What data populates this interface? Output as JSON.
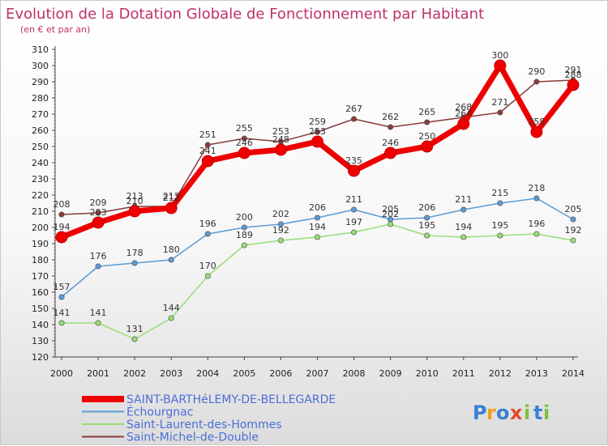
{
  "chart_data": {
    "type": "line",
    "title": "Evolution de la Dotation Globale de Fonctionnement par Habitant",
    "subtitle": "(en € et par an)",
    "xlabel": "",
    "ylabel": "",
    "ylim": [
      120,
      310
    ],
    "ytick_step": 10,
    "grid": false,
    "categories": [
      "2000",
      "2001",
      "2002",
      "2003",
      "2004",
      "2005",
      "2006",
      "2007",
      "2008",
      "2009",
      "2010",
      "2011",
      "2012",
      "2013",
      "2014"
    ],
    "series": [
      {
        "name": "SAINT-BARTHéLEMY-DE-BELLEGARDE",
        "color": "#ee0000",
        "values": [
          194,
          203,
          210,
          212,
          241,
          246,
          248,
          253,
          235,
          246,
          250,
          264,
          300,
          259,
          288
        ]
      },
      {
        "name": "Échourgnac",
        "color": "#5b9bd5",
        "values": [
          157,
          176,
          178,
          180,
          196,
          200,
          202,
          206,
          211,
          205,
          206,
          211,
          215,
          218,
          205
        ]
      },
      {
        "name": "Saint-Laurent-des-Hommes",
        "color": "#99dd77",
        "values": [
          141,
          141,
          131,
          144,
          170,
          189,
          192,
          194,
          197,
          202,
          195,
          194,
          195,
          196,
          192
        ]
      },
      {
        "name": "Saint-Michel-de-Double",
        "color": "#8b3a3a",
        "values": [
          208,
          209,
          213,
          213,
          251,
          255,
          253,
          259,
          267,
          262,
          265,
          268,
          271,
          290,
          291
        ]
      }
    ]
  },
  "branding": {
    "logo_letters": [
      "P",
      "r",
      "o",
      "x",
      "i",
      "t",
      "i"
    ],
    "logo_colors": [
      "#3a7fd4",
      "#f0a020",
      "#3a7fd4",
      "#e24a2a",
      "#7cc242",
      "#3a7fd4",
      "#7cc242"
    ]
  }
}
